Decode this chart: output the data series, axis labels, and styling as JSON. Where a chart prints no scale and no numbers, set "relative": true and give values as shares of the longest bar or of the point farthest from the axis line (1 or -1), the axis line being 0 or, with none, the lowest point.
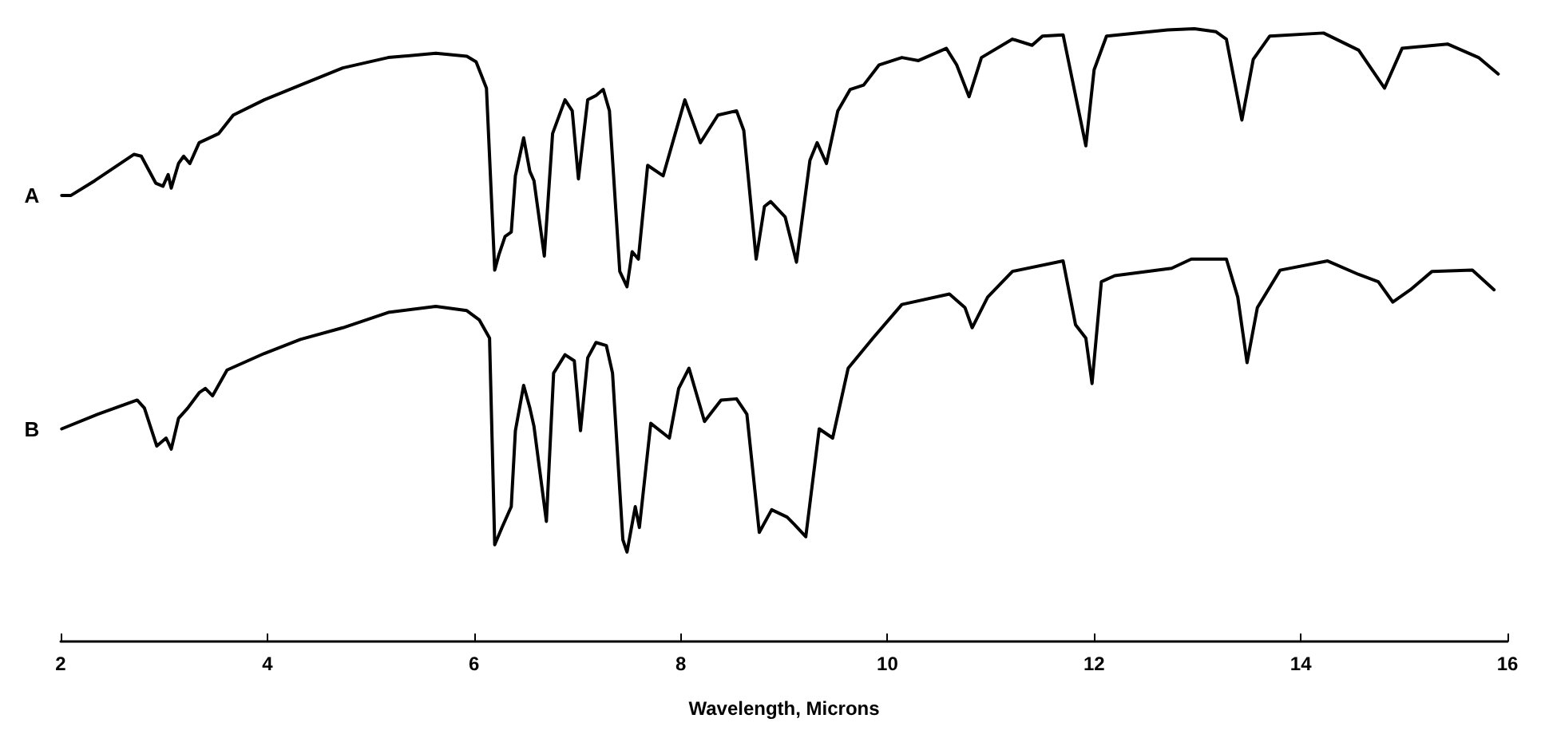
{
  "chart_data": {
    "type": "line",
    "xlabel": "Wavelength, Microns",
    "relative": true,
    "xlim": [
      2,
      16
    ],
    "xticks": [
      2,
      4,
      6,
      8,
      10,
      12,
      14,
      16
    ],
    "grid": false,
    "legend": false,
    "marker": "none",
    "line_style": "solid",
    "series": [
      {
        "name": "A",
        "color": "#000000",
        "x": [
          2.01,
          2.1,
          2.33,
          2.71,
          2.78,
          2.92,
          2.99,
          3.04,
          3.07,
          3.14,
          3.19,
          3.25,
          3.34,
          3.53,
          3.67,
          3.97,
          4.32,
          4.73,
          5.17,
          5.63,
          5.93,
          6.02,
          6.12,
          6.2,
          6.24,
          6.3,
          6.36,
          6.4,
          6.48,
          6.54,
          6.58,
          6.68,
          6.76,
          6.88,
          6.95,
          7.01,
          7.1,
          7.18,
          7.25,
          7.31,
          7.41,
          7.48,
          7.53,
          7.59,
          7.68,
          7.83,
          8.04,
          8.19,
          8.36,
          8.54,
          8.61,
          8.73,
          8.81,
          8.87,
          9.01,
          9.12,
          9.25,
          9.32,
          9.41,
          9.52,
          9.64,
          9.77,
          9.92,
          10.14,
          10.3,
          10.57,
          10.67,
          10.79,
          10.91,
          11.21,
          11.4,
          11.5,
          11.7,
          11.82,
          11.92,
          12.0,
          12.12,
          12.71,
          12.97,
          13.18,
          13.28,
          13.43,
          13.54,
          13.7,
          14.22,
          14.56,
          14.81,
          14.98,
          15.42,
          15.72,
          15.91
        ],
        "values": [
          0.728,
          0.728,
          0.752,
          0.795,
          0.792,
          0.748,
          0.743,
          0.762,
          0.74,
          0.78,
          0.792,
          0.78,
          0.814,
          0.829,
          0.859,
          0.884,
          0.908,
          0.936,
          0.953,
          0.96,
          0.955,
          0.946,
          0.903,
          0.606,
          0.631,
          0.661,
          0.668,
          0.76,
          0.822,
          0.767,
          0.752,
          0.629,
          0.829,
          0.884,
          0.866,
          0.755,
          0.884,
          0.891,
          0.901,
          0.866,
          0.604,
          0.579,
          0.636,
          0.624,
          0.777,
          0.76,
          0.884,
          0.814,
          0.859,
          0.866,
          0.834,
          0.624,
          0.71,
          0.718,
          0.693,
          0.619,
          0.785,
          0.814,
          0.78,
          0.866,
          0.901,
          0.908,
          0.941,
          0.953,
          0.948,
          0.968,
          0.941,
          0.889,
          0.953,
          0.983,
          0.973,
          0.988,
          0.99,
          0.891,
          0.809,
          0.933,
          0.988,
          0.998,
          1.0,
          0.995,
          0.983,
          0.851,
          0.95,
          0.988,
          0.993,
          0.965,
          0.903,
          0.968,
          0.975,
          0.953,
          0.926
        ]
      },
      {
        "name": "B",
        "color": "#000000",
        "x": [
          2.01,
          2.36,
          2.74,
          2.81,
          2.93,
          3.02,
          3.07,
          3.14,
          3.23,
          3.34,
          3.4,
          3.47,
          3.61,
          3.97,
          4.32,
          4.73,
          5.17,
          5.63,
          5.93,
          6.05,
          6.15,
          6.2,
          6.27,
          6.36,
          6.4,
          6.48,
          6.54,
          6.58,
          6.7,
          6.77,
          6.88,
          6.97,
          7.03,
          7.1,
          7.18,
          7.28,
          7.34,
          7.44,
          7.48,
          7.56,
          7.6,
          7.71,
          7.89,
          7.98,
          8.08,
          8.23,
          8.39,
          8.54,
          8.64,
          8.76,
          8.88,
          9.03,
          9.1,
          9.21,
          9.34,
          9.47,
          9.62,
          9.86,
          10.14,
          10.6,
          10.75,
          10.82,
          10.97,
          11.21,
          11.7,
          11.82,
          11.92,
          11.98,
          12.07,
          12.2,
          12.75,
          12.94,
          13.28,
          13.39,
          13.48,
          13.58,
          13.8,
          14.26,
          14.56,
          14.75,
          14.89,
          15.06,
          15.27,
          15.66,
          15.87
        ],
        "values": [
          0.347,
          0.371,
          0.394,
          0.381,
          0.319,
          0.332,
          0.314,
          0.364,
          0.381,
          0.406,
          0.413,
          0.401,
          0.443,
          0.47,
          0.493,
          0.512,
          0.537,
          0.547,
          0.54,
          0.525,
          0.495,
          0.158,
          0.186,
          0.22,
          0.344,
          0.418,
          0.381,
          0.351,
          0.196,
          0.438,
          0.468,
          0.458,
          0.344,
          0.463,
          0.488,
          0.483,
          0.438,
          0.166,
          0.146,
          0.22,
          0.186,
          0.356,
          0.332,
          0.413,
          0.446,
          0.359,
          0.394,
          0.396,
          0.371,
          0.178,
          0.215,
          0.203,
          0.191,
          0.171,
          0.347,
          0.332,
          0.446,
          0.495,
          0.55,
          0.567,
          0.545,
          0.512,
          0.562,
          0.604,
          0.621,
          0.517,
          0.495,
          0.421,
          0.587,
          0.597,
          0.609,
          0.624,
          0.624,
          0.562,
          0.455,
          0.545,
          0.606,
          0.621,
          0.599,
          0.587,
          0.554,
          0.574,
          0.604,
          0.606,
          0.574
        ]
      }
    ]
  }
}
